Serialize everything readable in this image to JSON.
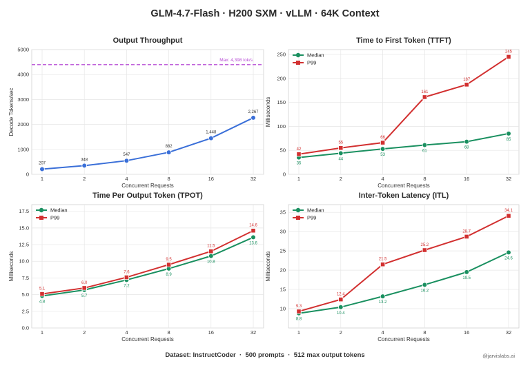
{
  "title": "GLM-4.7-Flash · H200 SXM · vLLM · 64K Context",
  "footer": {
    "dataset_label": "Dataset: InstructCoder",
    "prompts": "500 prompts",
    "max_tokens": "512 max output tokens",
    "separator": "·",
    "credit": "@jarvislabs.ai"
  },
  "colors": {
    "median": "#1a9060",
    "p99": "#d23030",
    "throughput": "#3a6fd8",
    "max_line": "#b84dd6"
  },
  "chart_data": [
    {
      "type": "line",
      "title": "Output Throughput",
      "xlabel": "Concurrent Requests",
      "ylabel": "Decode Tokens/sec",
      "categories": [
        "1",
        "2",
        "4",
        "8",
        "16",
        "32"
      ],
      "ylim": [
        0,
        5000
      ],
      "yticks": [
        "0",
        "1000",
        "2000",
        "3000",
        "4000",
        "5000"
      ],
      "grid": true,
      "series": [
        {
          "values": [
            207,
            348,
            547,
            882,
            1448,
            2267
          ],
          "labels": [
            "207",
            "348",
            "547",
            "882",
            "1,448",
            "2,267"
          ],
          "color": "#3a6fd8",
          "marker": "circle"
        }
      ],
      "reference_line": {
        "value": 4398,
        "label": "Max: 4,398 tok/s",
        "color": "#b84dd6",
        "style": "dashed"
      }
    },
    {
      "type": "line",
      "title": "Time to First Token (TTFT)",
      "xlabel": "Concurrent Requests",
      "ylabel": "Milliseconds",
      "categories": [
        "1",
        "2",
        "4",
        "8",
        "16",
        "32"
      ],
      "ylim": [
        0,
        260
      ],
      "yticks": [
        "0",
        "50",
        "100",
        "150",
        "200",
        "250"
      ],
      "grid": true,
      "legend": "top-left",
      "series": [
        {
          "name": "Median",
          "values": [
            35,
            44,
            53,
            61,
            68,
            85
          ],
          "labels": [
            "35",
            "44",
            "53",
            "61",
            "68",
            "85"
          ],
          "color": "#1a9060",
          "marker": "circle"
        },
        {
          "name": "P99",
          "values": [
            42,
            55,
            66,
            161,
            187,
            245
          ],
          "labels": [
            "42",
            "55",
            "66",
            "161",
            "187",
            "245"
          ],
          "color": "#d23030",
          "marker": "square"
        }
      ]
    },
    {
      "type": "line",
      "title": "Time Per Output Token (TPOT)",
      "xlabel": "Concurrent Requests",
      "ylabel": "Milliseconds",
      "categories": [
        "1",
        "2",
        "4",
        "8",
        "16",
        "32"
      ],
      "ylim": [
        0,
        18.5
      ],
      "yticks": [
        "0.0",
        "2.5",
        "5.0",
        "7.5",
        "10.0",
        "12.5",
        "15.0",
        "17.5"
      ],
      "grid": true,
      "legend": "top-left",
      "series": [
        {
          "name": "Median",
          "values": [
            4.8,
            5.7,
            7.2,
            8.9,
            10.8,
            13.6
          ],
          "labels": [
            "4.8",
            "5.7",
            "7.2",
            "8.9",
            "10.8",
            "13.6"
          ],
          "color": "#1a9060",
          "marker": "circle"
        },
        {
          "name": "P99",
          "values": [
            5.1,
            6.0,
            7.6,
            9.5,
            11.5,
            14.6
          ],
          "labels": [
            "5.1",
            "6.0",
            "7.6",
            "9.5",
            "11.5",
            "14.6"
          ],
          "color": "#d23030",
          "marker": "square"
        }
      ]
    },
    {
      "type": "line",
      "title": "Inter-Token Latency (ITL)",
      "xlabel": "Concurrent Requests",
      "ylabel": "Milliseconds",
      "categories": [
        "1",
        "2",
        "4",
        "8",
        "16",
        "32"
      ],
      "ylim": [
        5,
        37
      ],
      "yticks": [
        "10",
        "15",
        "20",
        "25",
        "30",
        "35"
      ],
      "grid": true,
      "legend": "top-left",
      "series": [
        {
          "name": "Median",
          "values": [
            8.8,
            10.4,
            13.2,
            16.2,
            19.5,
            24.6
          ],
          "labels": [
            "8.8",
            "10.4",
            "13.2",
            "16.2",
            "19.5",
            "24.6"
          ],
          "color": "#1a9060",
          "marker": "circle"
        },
        {
          "name": "P99",
          "values": [
            9.3,
            12.4,
            21.5,
            25.2,
            28.7,
            34.1
          ],
          "labels": [
            "9.3",
            "12.4",
            "21.5",
            "25.2",
            "28.7",
            "34.1"
          ],
          "color": "#d23030",
          "marker": "square"
        }
      ]
    }
  ]
}
